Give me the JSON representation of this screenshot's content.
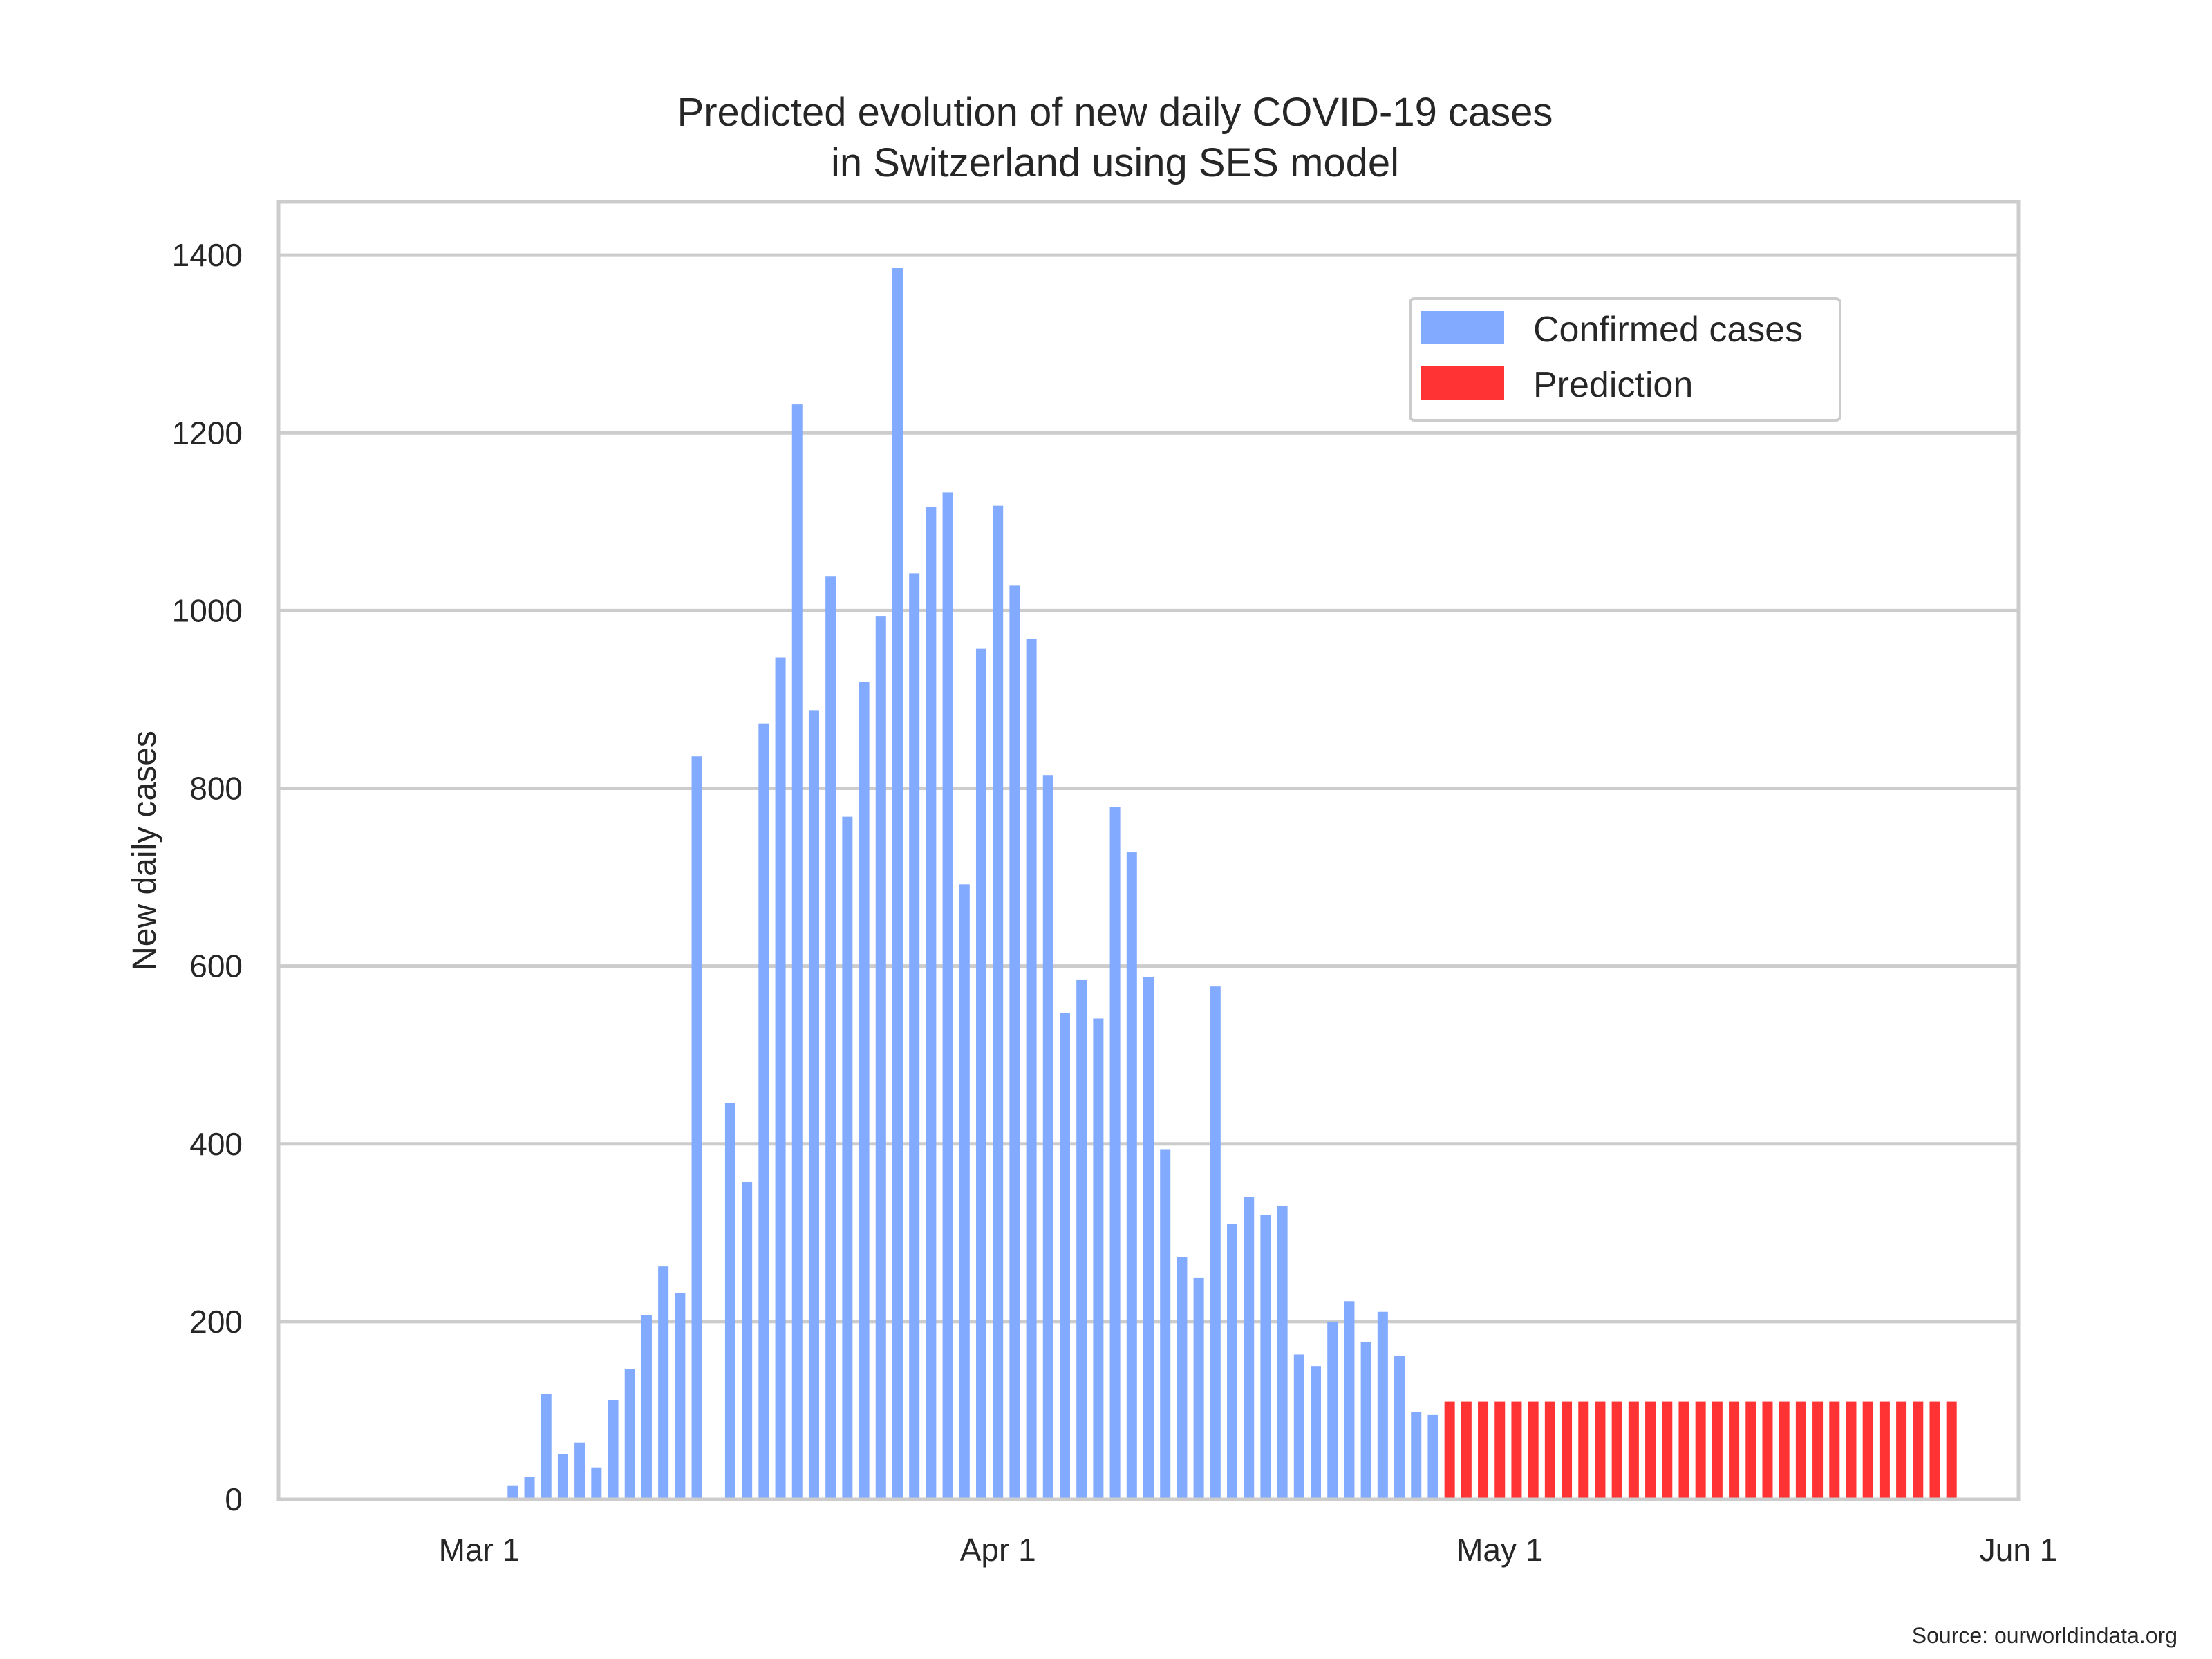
{
  "chart_data": {
    "type": "bar",
    "title_lines": [
      "Predicted evolution of new daily COVID-19 cases",
      "in Switzerland using SES model"
    ],
    "xlabel": "",
    "ylabel": "New daily cases",
    "ylim": [
      0,
      1460
    ],
    "yticks": [
      0,
      200,
      400,
      600,
      800,
      1000,
      1200,
      1400
    ],
    "xlim": [
      "2020-02-18",
      "2020-06-01"
    ],
    "xticks": [
      {
        "date": "2020-03-01",
        "label": "Mar 1"
      },
      {
        "date": "2020-04-01",
        "label": "Apr 1"
      },
      {
        "date": "2020-05-01",
        "label": "May 1"
      },
      {
        "date": "2020-06-01",
        "label": "Jun 1"
      }
    ],
    "grid": true,
    "legend_position": "top-right",
    "series": [
      {
        "name": "Confirmed cases",
        "color": "#82aaff",
        "start_date": "2020-02-25",
        "values": [
          1,
          0,
          1,
          1,
          1,
          1,
          0,
          15,
          25,
          119,
          51,
          64,
          36,
          112,
          147,
          207,
          262,
          232,
          836,
          0,
          446,
          357,
          873,
          947,
          1232,
          888,
          1039,
          768,
          920,
          994,
          1386,
          1042,
          1117,
          1133,
          692,
          957,
          1118,
          1028,
          968,
          815,
          547,
          585,
          541,
          779,
          728,
          588,
          394,
          273,
          249,
          577,
          310,
          340,
          320,
          330,
          163,
          150,
          200,
          223,
          177,
          211,
          161,
          98,
          95
        ],
        "dates": [
          "2020-02-25",
          "2020-02-26",
          "2020-02-27",
          "2020-02-28",
          "2020-02-29",
          "2020-03-01",
          "2020-03-02",
          "2020-03-03",
          "2020-03-04",
          "2020-03-05",
          "2020-03-06",
          "2020-03-07",
          "2020-03-08",
          "2020-03-09",
          "2020-03-10",
          "2020-03-11",
          "2020-03-12",
          "2020-03-13",
          "2020-03-14",
          "2020-03-15",
          "2020-03-16",
          "2020-03-17",
          "2020-03-18",
          "2020-03-19",
          "2020-03-20",
          "2020-03-21",
          "2020-03-22",
          "2020-03-23",
          "2020-03-24",
          "2020-03-25",
          "2020-03-26",
          "2020-03-27",
          "2020-03-28",
          "2020-03-29",
          "2020-03-30",
          "2020-03-31",
          "2020-04-01",
          "2020-04-02",
          "2020-04-03",
          "2020-04-04",
          "2020-04-05",
          "2020-04-06",
          "2020-04-07",
          "2020-04-08",
          "2020-04-09",
          "2020-04-10",
          "2020-04-11",
          "2020-04-12",
          "2020-04-13",
          "2020-04-14",
          "2020-04-15",
          "2020-04-16",
          "2020-04-17",
          "2020-04-18",
          "2020-04-19",
          "2020-04-20",
          "2020-04-21",
          "2020-04-22",
          "2020-04-23",
          "2020-04-24",
          "2020-04-25",
          "2020-04-26",
          "2020-04-27"
        ]
      },
      {
        "name": "Prediction",
        "color": "#ff3333",
        "start_date": "2020-04-28",
        "dates": [
          "2020-04-28",
          "2020-04-29",
          "2020-04-30",
          "2020-05-01",
          "2020-05-02",
          "2020-05-03",
          "2020-05-04",
          "2020-05-05",
          "2020-05-06",
          "2020-05-07",
          "2020-05-08",
          "2020-05-09",
          "2020-05-10",
          "2020-05-11",
          "2020-05-12",
          "2020-05-13",
          "2020-05-14",
          "2020-05-15",
          "2020-05-16",
          "2020-05-17",
          "2020-05-18",
          "2020-05-19",
          "2020-05-20",
          "2020-05-21",
          "2020-05-22",
          "2020-05-23",
          "2020-05-24",
          "2020-05-25",
          "2020-05-26",
          "2020-05-27",
          "2020-05-28"
        ],
        "values": [
          110,
          110,
          110,
          110,
          110,
          110,
          110,
          110,
          110,
          110,
          110,
          110,
          110,
          110,
          110,
          110,
          110,
          110,
          110,
          110,
          110,
          110,
          110,
          110,
          110,
          110,
          110,
          110,
          110,
          110,
          110
        ]
      }
    ]
  },
  "source_note": "Source: ourworldindata.org"
}
